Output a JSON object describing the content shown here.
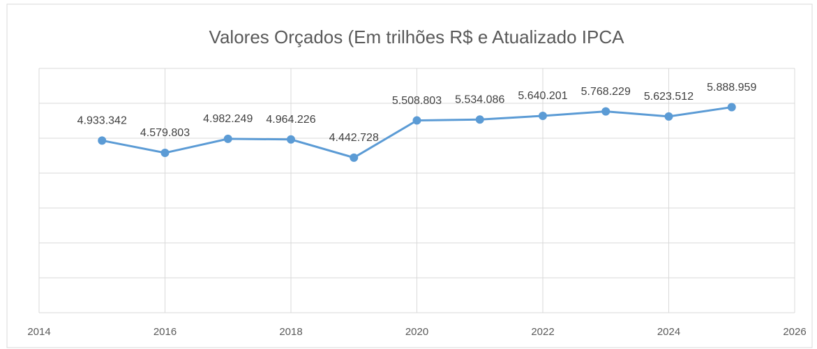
{
  "chart_data": {
    "type": "line",
    "title": "Valores Orçados (Em trilhões R$ e Atualizado IPCA",
    "x": [
      2015,
      2016,
      2017,
      2018,
      2019,
      2020,
      2021,
      2022,
      2023,
      2024,
      2025
    ],
    "series": [
      {
        "color": "#5b9bd5",
        "values": [
          4933342,
          4579803,
          4982249,
          4964226,
          4442728,
          5508803,
          5534086,
          5640201,
          5768229,
          5623512,
          5888959
        ],
        "value_labels": [
          "4.933.342",
          "4.579.803",
          "4.982.249",
          "4.964.226",
          "4.442.728",
          "5.508.803",
          "5.534.086",
          "5.640.201",
          "5.768.229",
          "5.623.512",
          "5.888.959"
        ]
      }
    ],
    "xlim": [
      2014,
      2026
    ],
    "xticks": [
      2014,
      2016,
      2018,
      2020,
      2022,
      2024,
      2026
    ],
    "ylim": [
      0,
      7000000
    ],
    "yticks": [
      0,
      1000000,
      2000000,
      3000000,
      4000000,
      5000000,
      6000000,
      7000000
    ],
    "grid": true
  }
}
